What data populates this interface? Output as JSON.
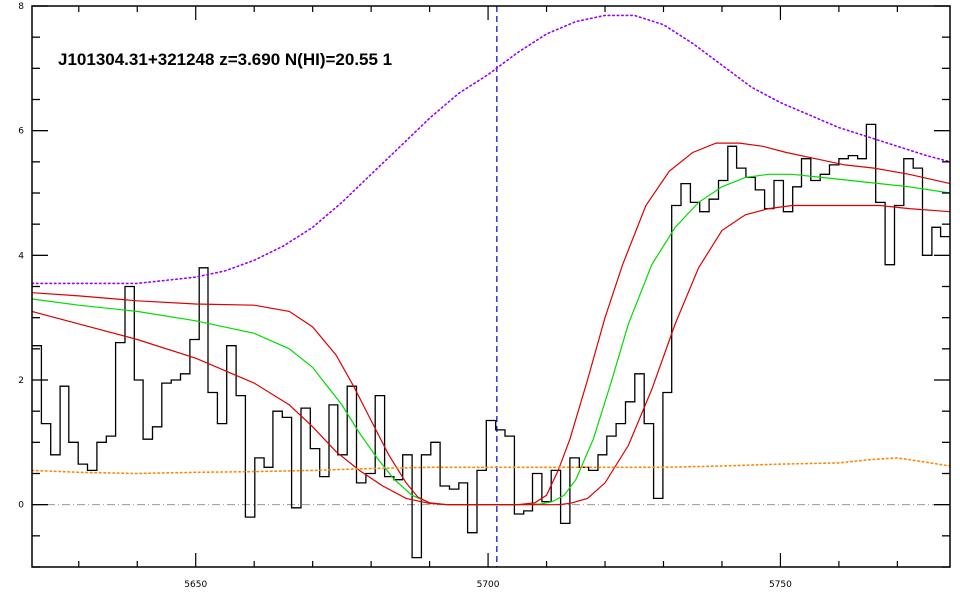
{
  "chart_data": {
    "type": "line",
    "title": "J101304.31+321248 z=3.690 N(HI)=20.55 1",
    "xlabel": "",
    "ylabel": "",
    "xlim": [
      5622,
      5779
    ],
    "ylim": [
      -1.0,
      8.0
    ],
    "x_major_ticks": [
      5650,
      5700,
      5750
    ],
    "x_tick_labels": [
      "5650",
      "5700",
      "5750"
    ],
    "y_major_ticks": [
      0,
      2,
      4,
      6,
      8
    ],
    "y_tick_labels": [
      "0",
      "2",
      "4",
      "6",
      "8"
    ],
    "grid": false,
    "legend": "none",
    "vline": {
      "x": 5701.5,
      "color": "#0000cc",
      "style": "dashed"
    },
    "hline": {
      "y": 0,
      "color": "#999999",
      "style": "dash-dot"
    },
    "series": [
      {
        "role": "flux",
        "color": "#000000",
        "style": "histogram",
        "x": [
          5622.0,
          5623.6,
          5625.2,
          5626.8,
          5628.3,
          5629.9,
          5631.5,
          5633.1,
          5634.7,
          5636.3,
          5637.9,
          5639.5,
          5641.0,
          5642.6,
          5644.2,
          5645.8,
          5647.4,
          5649.0,
          5650.6,
          5652.1,
          5653.7,
          5655.3,
          5656.9,
          5658.5,
          5660.1,
          5661.7,
          5663.2,
          5664.8,
          5666.4,
          5668.0,
          5669.6,
          5671.2,
          5672.8,
          5674.3,
          5675.9,
          5677.5,
          5679.1,
          5680.7,
          5682.3,
          5683.9,
          5685.4,
          5687.0,
          5688.6,
          5690.2,
          5691.8,
          5693.4,
          5695.0,
          5696.5,
          5698.1,
          5699.7,
          5701.3,
          5702.9,
          5704.5,
          5706.1,
          5707.6,
          5709.2,
          5710.8,
          5712.4,
          5714.0,
          5715.6,
          5717.2,
          5718.8,
          5720.3,
          5721.9,
          5723.5,
          5725.1,
          5726.7,
          5728.3,
          5729.9,
          5731.4,
          5733.0,
          5734.6,
          5736.2,
          5737.8,
          5739.4,
          5741.0,
          5742.5,
          5744.1,
          5745.7,
          5747.3,
          5748.9,
          5750.5,
          5752.1,
          5753.6,
          5755.2,
          5756.8,
          5758.4,
          5760.0,
          5761.6,
          5763.2,
          5764.7,
          5766.3,
          5767.9,
          5769.5,
          5771.1,
          5772.7,
          5774.3,
          5775.9,
          5777.4
        ],
        "y": [
          2.55,
          1.3,
          0.8,
          1.9,
          1.0,
          0.65,
          0.55,
          1.0,
          1.1,
          2.6,
          3.5,
          2.0,
          1.05,
          1.25,
          1.95,
          2.0,
          2.1,
          2.65,
          3.8,
          1.8,
          1.3,
          2.55,
          1.75,
          -0.2,
          0.75,
          0.6,
          1.5,
          1.4,
          -0.05,
          1.55,
          0.9,
          0.45,
          1.6,
          0.8,
          1.9,
          0.35,
          0.5,
          1.75,
          0.45,
          0.4,
          0.8,
          -0.85,
          0.8,
          1.0,
          0.3,
          0.25,
          0.35,
          -0.45,
          0.55,
          1.35,
          1.2,
          1.1,
          -0.15,
          -0.1,
          0.5,
          0.05,
          0.55,
          -0.3,
          0.75,
          0.6,
          0.55,
          0.8,
          1.1,
          1.3,
          1.65,
          2.1,
          1.3,
          0.1,
          1.8,
          4.8,
          5.15,
          4.85,
          4.7,
          4.9,
          5.2,
          5.75,
          5.4,
          5.25,
          5.05,
          4.75,
          5.2,
          4.7,
          5.1,
          5.55,
          5.2,
          5.3,
          5.45,
          5.55,
          5.6,
          5.55,
          6.1,
          4.85,
          3.85,
          4.8,
          5.55,
          5.4,
          4.0,
          4.45,
          4.3
        ]
      },
      {
        "role": "model",
        "color": "#00dd00",
        "x": [
          5622,
          5630,
          5640,
          5650,
          5660,
          5666,
          5670,
          5675,
          5678,
          5681,
          5684,
          5687,
          5690,
          5693,
          5697,
          5701,
          5705,
          5709,
          5711,
          5713,
          5715,
          5718,
          5721,
          5724,
          5728,
          5732,
          5736,
          5740,
          5744,
          5748,
          5752,
          5757,
          5762,
          5767,
          5772,
          5779
        ],
        "y": [
          3.3,
          3.2,
          3.1,
          2.95,
          2.75,
          2.5,
          2.2,
          1.6,
          1.15,
          0.75,
          0.4,
          0.15,
          0.03,
          0.0,
          0.0,
          0.0,
          0.0,
          0.01,
          0.05,
          0.15,
          0.4,
          1.05,
          1.95,
          2.9,
          3.85,
          4.45,
          4.85,
          5.1,
          5.25,
          5.3,
          5.3,
          5.25,
          5.2,
          5.15,
          5.1,
          5.0
        ]
      },
      {
        "role": "model-upper",
        "color": "#dd0000",
        "x": [
          5622,
          5630,
          5640,
          5650,
          5660,
          5666,
          5670,
          5674,
          5677,
          5680,
          5683,
          5686,
          5688,
          5690,
          5693,
          5697,
          5701,
          5705,
          5708,
          5710,
          5712,
          5714,
          5717,
          5720,
          5723,
          5727,
          5731,
          5735,
          5739,
          5743,
          5747,
          5751,
          5756,
          5761,
          5766,
          5772,
          5779
        ],
        "y": [
          3.4,
          3.35,
          3.27,
          3.22,
          3.2,
          3.1,
          2.85,
          2.4,
          1.9,
          1.35,
          0.8,
          0.35,
          0.12,
          0.03,
          0.0,
          0.0,
          0.0,
          0.0,
          0.03,
          0.15,
          0.55,
          1.05,
          2.0,
          3.0,
          3.85,
          4.8,
          5.35,
          5.65,
          5.8,
          5.8,
          5.75,
          5.65,
          5.55,
          5.45,
          5.4,
          5.3,
          5.15
        ]
      },
      {
        "role": "model-lower",
        "color": "#dd0000",
        "x": [
          5622,
          5630,
          5640,
          5650,
          5660,
          5666,
          5670,
          5674,
          5678,
          5682,
          5686,
          5690,
          5693,
          5697,
          5701,
          5705,
          5709,
          5712,
          5714,
          5717,
          5720,
          5724,
          5728,
          5732,
          5736,
          5740,
          5744,
          5748,
          5752,
          5757,
          5762,
          5767,
          5772,
          5779
        ],
        "y": [
          3.1,
          2.9,
          2.65,
          2.35,
          1.95,
          1.6,
          1.25,
          0.85,
          0.55,
          0.3,
          0.1,
          0.02,
          0.0,
          0.0,
          0.0,
          0.0,
          0.0,
          0.0,
          0.02,
          0.1,
          0.35,
          0.95,
          1.85,
          2.9,
          3.8,
          4.4,
          4.65,
          4.75,
          4.8,
          4.8,
          4.8,
          4.8,
          4.75,
          4.7
        ]
      },
      {
        "role": "continuum",
        "color": "#9900ff",
        "style": "dotted",
        "x": [
          5622,
          5630,
          5640,
          5645,
          5650,
          5655,
          5660,
          5665,
          5670,
          5675,
          5680,
          5685,
          5690,
          5695,
          5700,
          5705,
          5710,
          5715,
          5720,
          5725,
          5730,
          5735,
          5740,
          5745,
          5750,
          5755,
          5760,
          5765,
          5770,
          5775,
          5779
        ],
        "y": [
          3.55,
          3.55,
          3.55,
          3.6,
          3.65,
          3.75,
          3.92,
          4.15,
          4.45,
          4.85,
          5.3,
          5.75,
          6.2,
          6.6,
          6.9,
          7.25,
          7.55,
          7.75,
          7.85,
          7.85,
          7.7,
          7.4,
          7.05,
          6.7,
          6.45,
          6.25,
          6.05,
          5.9,
          5.75,
          5.6,
          5.5
        ]
      },
      {
        "role": "error",
        "color": "#ff8800",
        "style": "dotted",
        "x": [
          5622,
          5630,
          5640,
          5650,
          5660,
          5670,
          5680,
          5690,
          5700,
          5710,
          5720,
          5730,
          5740,
          5750,
          5760,
          5765,
          5770,
          5775,
          5779
        ],
        "y": [
          0.55,
          0.52,
          0.5,
          0.52,
          0.53,
          0.55,
          0.58,
          0.6,
          0.6,
          0.6,
          0.6,
          0.6,
          0.62,
          0.65,
          0.67,
          0.72,
          0.75,
          0.68,
          0.62
        ]
      }
    ]
  }
}
